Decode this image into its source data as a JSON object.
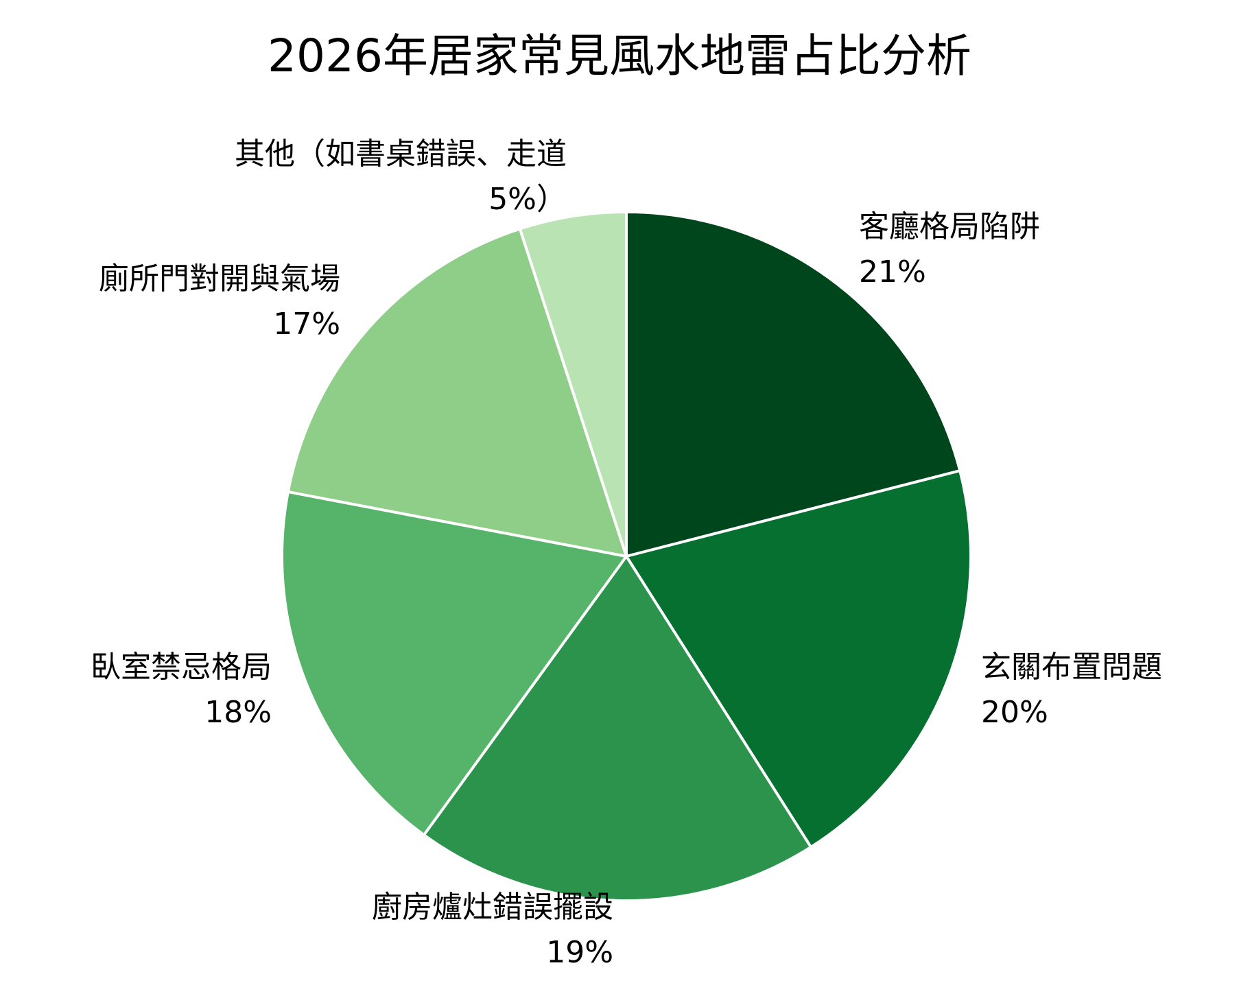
{
  "chart_data": {
    "type": "pie",
    "title": "2026年居家常見風水地雷占比分析",
    "categories": [
      "客廳格局陷阱",
      "玄關布置問題",
      "廚房爐灶錯誤擺設",
      "臥室禁忌格局",
      "廁所門對開與氣場",
      "其他（如書桌錯誤、走道"
    ],
    "values": [
      21,
      20,
      19,
      18,
      17,
      5
    ],
    "labels": [
      "21%",
      "20%",
      "19%",
      "18%",
      "17%",
      "5%）"
    ],
    "colors": [
      "#00461c",
      "#067030",
      "#2c934c",
      "#55b46a",
      "#8ece88",
      "#b9e3b3"
    ],
    "start_angle": "12 o'clock, clockwise",
    "legend": "none (direct labels)"
  }
}
